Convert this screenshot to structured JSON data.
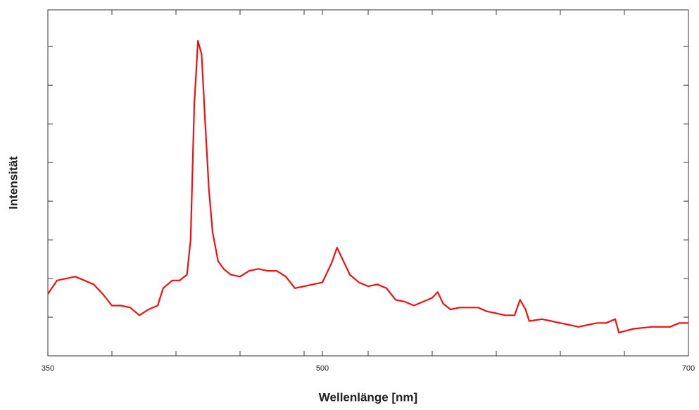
{
  "chart_data": {
    "type": "line",
    "xlabel": "Wellenlänge [nm]",
    "ylabel": "Intensität",
    "xlim": [
      350,
      700
    ],
    "xticks": [
      350,
      500,
      700
    ],
    "xminor_ticks": [
      385,
      420,
      455,
      490,
      525,
      560,
      595,
      630,
      665
    ],
    "ylim": [
      0,
      8.95
    ],
    "yminor_ticks": [
      1,
      2,
      3,
      4,
      5,
      6,
      7,
      8
    ],
    "series": [
      {
        "color": "#ee1111",
        "x": [
          350,
          355,
          360,
          365,
          370,
          375,
          380,
          385,
          390,
          395,
          400,
          405,
          410,
          413,
          418,
          422,
          426,
          428,
          430,
          432,
          434,
          436,
          438,
          440,
          443,
          446,
          450,
          455,
          460,
          465,
          470,
          475,
          480,
          485,
          490,
          495,
          500,
          505,
          508,
          511,
          515,
          520,
          525,
          530,
          535,
          540,
          545,
          550,
          555,
          560,
          563,
          566,
          570,
          575,
          580,
          585,
          590,
          595,
          600,
          605,
          608,
          611,
          613,
          620,
          625,
          630,
          635,
          640,
          645,
          650,
          655,
          660,
          662,
          670,
          680,
          690,
          695,
          700
        ],
        "values": [
          1.6,
          1.95,
          2.0,
          2.05,
          1.95,
          1.85,
          1.6,
          1.3,
          1.3,
          1.25,
          1.05,
          1.2,
          1.3,
          1.75,
          1.95,
          1.95,
          2.1,
          3.0,
          6.5,
          8.15,
          7.8,
          6.0,
          4.3,
          3.2,
          2.45,
          2.25,
          2.1,
          2.05,
          2.2,
          2.25,
          2.2,
          2.2,
          2.05,
          1.75,
          1.8,
          1.85,
          1.9,
          2.4,
          2.8,
          2.5,
          2.1,
          1.9,
          1.8,
          1.85,
          1.75,
          1.45,
          1.4,
          1.3,
          1.4,
          1.5,
          1.65,
          1.35,
          1.2,
          1.25,
          1.25,
          1.25,
          1.15,
          1.1,
          1.05,
          1.05,
          1.45,
          1.2,
          0.9,
          0.95,
          0.9,
          0.85,
          0.8,
          0.75,
          0.8,
          0.85,
          0.85,
          0.95,
          0.6,
          0.7,
          0.75,
          0.75,
          0.85,
          0.85
        ]
      }
    ]
  }
}
